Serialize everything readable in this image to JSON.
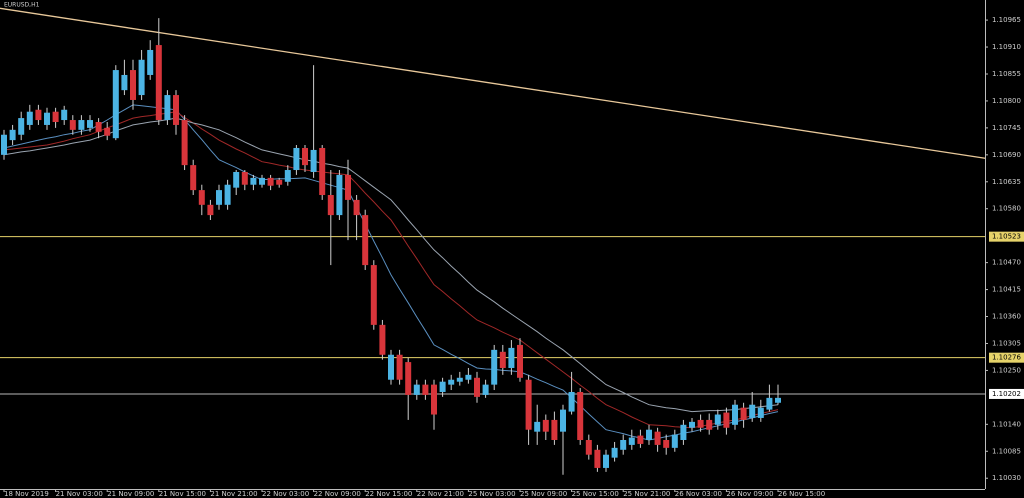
{
  "chart_data": {
    "type": "candlestick",
    "title": "EURUSD,H1",
    "categories": [
      "18 Nov 2019",
      null,
      null,
      null,
      null,
      null,
      "21 Nov 03:00",
      null,
      null,
      null,
      null,
      null,
      "21 Nov 09:00",
      null,
      null,
      null,
      null,
      null,
      "21 Nov 15:00",
      null,
      null,
      null,
      null,
      null,
      "21 Nov 21:00",
      null,
      null,
      null,
      null,
      null,
      "22 Nov 03:00",
      null,
      null,
      null,
      null,
      null,
      "22 Nov 09:00",
      null,
      null,
      null,
      null,
      null,
      "22 Nov 15:00",
      null,
      null,
      null,
      null,
      null,
      "22 Nov 21:00",
      null,
      null,
      null,
      null,
      null,
      "25 Nov 03:00",
      null,
      null,
      null,
      null,
      null,
      "25 Nov 09:00",
      null,
      null,
      null,
      null,
      null,
      "25 Nov 15:00",
      null,
      null,
      null,
      null,
      null,
      "25 Nov 21:00",
      null,
      null,
      null,
      null,
      null,
      "26 Nov 03:00",
      null,
      null,
      null,
      null,
      null,
      "26 Nov 09:00",
      null,
      null,
      null,
      null,
      null,
      "26 Nov 15:00"
    ],
    "open": [
      1.1069,
      1.1072,
      1.10731,
      1.10751,
      1.10782,
      1.10751,
      1.10778,
      1.10761,
      1.10761,
      1.10741,
      1.10745,
      1.10757,
      1.10745,
      1.10724,
      1.10822,
      1.10863,
      1.10812,
      1.10853,
      1.10914,
      1.10761,
      1.10812,
      1.10761,
      1.10669,
      1.10618,
      1.10588,
      1.10588,
      1.10588,
      1.10623,
      1.10655,
      1.10629,
      1.10629,
      1.10643,
      1.10639,
      1.10635,
      1.10659,
      1.10704,
      1.10655,
      1.10704,
      1.10608,
      1.10567,
      1.10649,
      1.10598,
      1.10567,
      1.10465,
      1.10343,
      1.10231,
      1.10282,
      1.10267,
      1.102,
      1.10221,
      1.10221,
      1.10206,
      1.10221,
      1.10227,
      1.10231,
      1.10235,
      1.102,
      1.10221,
      1.10288,
      1.10255,
      1.10302,
      1.10231,
      1.10125,
      1.10149,
      1.10149,
      1.10125,
      1.10166,
      1.10206,
      1.10108,
      1.10088,
      1.10051,
      1.10072,
      1.10088,
      1.10098,
      1.10117,
      1.10108,
      1.10125,
      1.10108,
      1.10092,
      1.10108,
      1.10133,
      1.10149,
      1.10149,
      1.10139,
      1.10164,
      1.10139,
      1.10174,
      1.10153,
      1.10153,
      1.1017,
      1.10184
    ],
    "high": [
      1.10741,
      1.10751,
      1.10778,
      1.10792,
      1.10792,
      1.10786,
      1.10786,
      1.1079,
      1.10771,
      1.10771,
      1.10771,
      1.10765,
      1.10757,
      1.10873,
      1.10884,
      1.10884,
      1.10904,
      1.10924,
      1.10969,
      1.10822,
      1.10822,
      1.10771,
      1.1068,
      1.10629,
      1.10598,
      1.10629,
      1.10639,
      1.10659,
      1.10659,
      1.10649,
      1.10649,
      1.10649,
      1.10643,
      1.10669,
      1.1071,
      1.1071,
      1.10873,
      1.1071,
      1.10659,
      1.10659,
      1.1068,
      1.10608,
      1.10578,
      1.10475,
      1.10353,
      1.10292,
      1.10292,
      1.10276,
      1.10231,
      1.10231,
      1.10231,
      1.10235,
      1.10241,
      1.10247,
      1.10255,
      1.10247,
      1.10231,
      1.10302,
      1.10302,
      1.10312,
      1.10316,
      1.10241,
      1.1018,
      1.1016,
      1.10166,
      1.1018,
      1.10247,
      1.10214,
      1.10119,
      1.10098,
      1.10088,
      1.10104,
      1.10119,
      1.10129,
      1.10129,
      1.10139,
      1.10133,
      1.10119,
      1.10129,
      1.10149,
      1.10153,
      1.1016,
      1.10162,
      1.1017,
      1.10174,
      1.1019,
      1.10184,
      1.10206,
      1.1019,
      1.10221,
      1.10221
    ],
    "low": [
      1.1068,
      1.1071,
      1.1072,
      1.10741,
      1.10751,
      1.10741,
      1.10745,
      1.10751,
      1.10731,
      1.10731,
      1.10737,
      1.10724,
      1.1072,
      1.1072,
      1.10812,
      1.10782,
      1.10802,
      1.10843,
      1.10751,
      1.10751,
      1.10731,
      1.10659,
      1.10608,
      1.10567,
      1.10557,
      1.10578,
      1.10578,
      1.10608,
      1.10618,
      1.10618,
      1.10623,
      1.10618,
      1.10623,
      1.10627,
      1.10649,
      1.10655,
      1.10643,
      1.10598,
      1.10465,
      1.10557,
      1.10516,
      1.10516,
      1.10455,
      1.10333,
      1.10272,
      1.10221,
      1.10221,
      1.10149,
      1.1019,
      1.1019,
      1.10129,
      1.10196,
      1.1021,
      1.10219,
      1.10223,
      1.10184,
      1.10194,
      1.1021,
      1.10241,
      1.10241,
      1.10227,
      1.10098,
      1.10098,
      1.10108,
      1.10098,
      1.10037,
      1.1016,
      1.10098,
      1.10068,
      1.10043,
      1.10043,
      1.10064,
      1.10078,
      1.10088,
      1.10092,
      1.10098,
      1.10084,
      1.10078,
      1.10084,
      1.10098,
      1.10125,
      1.10125,
      1.10119,
      1.10129,
      1.10119,
      1.10129,
      1.10133,
      1.10145,
      1.10145,
      1.10166,
      1.1018
    ],
    "close": [
      1.10731,
      1.10741,
      1.10765,
      1.10778,
      1.10761,
      1.10776,
      1.10757,
      1.10782,
      1.10741,
      1.10761,
      1.10761,
      1.10737,
      1.10729,
      1.10863,
      1.10853,
      1.10802,
      1.10884,
      1.10904,
      1.10761,
      1.10812,
      1.10751,
      1.10669,
      1.10618,
      1.10588,
      1.10567,
      1.10618,
      1.10629,
      1.10655,
      1.10629,
      1.10643,
      1.10643,
      1.10627,
      1.10629,
      1.10659,
      1.10704,
      1.10669,
      1.107,
      1.10608,
      1.10567,
      1.10649,
      1.10598,
      1.10567,
      1.10465,
      1.10343,
      1.10282,
      1.10282,
      1.10231,
      1.102,
      1.10221,
      1.102,
      1.1016,
      1.10227,
      1.10231,
      1.10235,
      1.10241,
      1.10196,
      1.10221,
      1.10292,
      1.10255,
      1.10296,
      1.10235,
      1.10129,
      1.10145,
      1.10125,
      1.10108,
      1.1017,
      1.10206,
      1.10108,
      1.10078,
      1.10051,
      1.10078,
      1.10092,
      1.10108,
      1.10113,
      1.101,
      1.10129,
      1.10098,
      1.10092,
      1.10119,
      1.10139,
      1.10145,
      1.10133,
      1.10129,
      1.1016,
      1.10133,
      1.1018,
      1.10149,
      1.1018,
      1.10174,
      1.10194,
      1.10194
    ],
    "up_color": "#4cb4e4",
    "down_color": "#d8353b",
    "wick_color": "#d0d0d0",
    "lines": [
      {
        "color": "#5a8fc0",
        "values": [
          1.10704,
          1.10708,
          1.10712,
          1.10716,
          1.1072,
          1.10724,
          1.10727,
          1.10731,
          1.10734,
          1.10738,
          1.10741,
          1.10751,
          1.10761,
          1.10772,
          1.10782,
          1.10792,
          1.1079,
          1.10788,
          1.10786,
          1.10784,
          1.10782,
          1.10762,
          1.10741,
          1.10721,
          1.107,
          1.1068,
          1.10672,
          1.10664,
          1.10655,
          1.10647,
          1.10639,
          1.1064,
          1.10641,
          1.10641,
          1.10642,
          1.10643,
          1.10638,
          1.10633,
          1.10628,
          1.10623,
          1.10618,
          1.10583,
          1.10549,
          1.10514,
          1.1048,
          1.10445,
          1.10416,
          1.10388,
          1.10359,
          1.10331,
          1.10302,
          1.10293,
          1.10283,
          1.10274,
          1.10264,
          1.10255,
          1.10253,
          1.10252,
          1.1025,
          1.10249,
          1.10247,
          1.1024,
          1.10232,
          1.10225,
          1.10217,
          1.1021,
          1.10194,
          1.10178,
          1.10161,
          1.10145,
          1.10129,
          1.10125,
          1.10121,
          1.10116,
          1.10112,
          1.10108,
          1.10111,
          1.10115,
          1.10118,
          1.10122,
          1.10125,
          1.10129,
          1.10133,
          1.10137,
          1.10141,
          1.10145,
          1.10149,
          1.10153,
          1.10158,
          1.10162,
          1.10166
        ]
      },
      {
        "color": "#a02828",
        "values": [
          1.107,
          1.10702,
          1.10704,
          1.10706,
          1.10708,
          1.1071,
          1.10714,
          1.10718,
          1.10723,
          1.10727,
          1.10731,
          1.10738,
          1.10745,
          1.10751,
          1.10758,
          1.10765,
          1.10768,
          1.1077,
          1.10773,
          1.10775,
          1.10778,
          1.10766,
          1.10755,
          1.10743,
          1.10732,
          1.1072,
          1.10711,
          1.10702,
          1.10694,
          1.10685,
          1.10676,
          1.10673,
          1.10669,
          1.10666,
          1.10662,
          1.10659,
          1.10657,
          1.10655,
          1.10653,
          1.10651,
          1.10649,
          1.10631,
          1.10612,
          1.10594,
          1.10575,
          1.10557,
          1.10531,
          1.10504,
          1.10478,
          1.10451,
          1.10425,
          1.10411,
          1.10396,
          1.10382,
          1.10367,
          1.10353,
          1.10345,
          1.10337,
          1.10328,
          1.1032,
          1.10312,
          1.10299,
          1.10286,
          1.10273,
          1.1026,
          1.10247,
          1.10234,
          1.1022,
          1.10207,
          1.10193,
          1.1018,
          1.10172,
          1.10164,
          1.10155,
          1.10147,
          1.10139,
          1.10138,
          1.10137,
          1.10135,
          1.10134,
          1.10133,
          1.10136,
          1.10139,
          1.10143,
          1.10146,
          1.10149,
          1.10153,
          1.10158,
          1.10162,
          1.10166,
          1.1017
        ]
      },
      {
        "color": "#9aa4b0",
        "values": [
          1.1069,
          1.10693,
          1.10696,
          1.10698,
          1.10701,
          1.10704,
          1.10707,
          1.1071,
          1.10714,
          1.10717,
          1.1072,
          1.10726,
          1.10732,
          1.10739,
          1.10745,
          1.10751,
          1.10754,
          1.10757,
          1.10759,
          1.10762,
          1.10765,
          1.1076,
          1.10755,
          1.10751,
          1.10746,
          1.10741,
          1.10733,
          1.10725,
          1.10716,
          1.10708,
          1.107,
          1.10696,
          1.10692,
          1.10688,
          1.10684,
          1.1068,
          1.10677,
          1.10673,
          1.1067,
          1.10666,
          1.10663,
          1.1065,
          1.10637,
          1.10624,
          1.10611,
          1.10598,
          1.10578,
          1.10557,
          1.10537,
          1.10516,
          1.10496,
          1.1048,
          1.10463,
          1.10447,
          1.1043,
          1.10414,
          1.10402,
          1.1039,
          1.10377,
          1.10365,
          1.10353,
          1.10341,
          1.10329,
          1.10316,
          1.10304,
          1.10292,
          1.10278,
          1.10264,
          1.10249,
          1.10235,
          1.10221,
          1.10213,
          1.10205,
          1.10196,
          1.10188,
          1.1018,
          1.10177,
          1.10174,
          1.10172,
          1.10169,
          1.10166,
          1.10167,
          1.10168,
          1.10168,
          1.10169,
          1.1017,
          1.10172,
          1.10174,
          1.10176,
          1.10178,
          1.1018
        ]
      }
    ],
    "trendline": {
      "color": "#e8c89a",
      "values": [
        1.10989,
        1.10683
      ]
    },
    "levels": [
      {
        "value": 1.10523,
        "color": "#e6d36a",
        "label_color": "#e6d36a"
      },
      {
        "value": 1.10276,
        "color": "#e6d36a",
        "label_color": "#e6d36a"
      },
      {
        "value": 1.10202,
        "color": "#b8b8b8",
        "label_color": "#ffffff"
      }
    ],
    "ylim": [
      1.10008,
      1.11006
    ],
    "yticks": [
      1.10965,
      {
        "value": 1.1091,
        "label": "1.10910"
      },
      1.10855,
      {
        "value": 1.108,
        "label": "1.10800"
      },
      1.10745,
      {
        "value": 1.1069,
        "label": "1.10690"
      },
      1.10635,
      {
        "value": 1.1058,
        "label": "1.10580"
      },
      {
        "value": 1.1047,
        "label": "1.10470"
      },
      1.10415,
      {
        "value": 1.1036,
        "label": "1.10360"
      },
      1.10305,
      {
        "value": 1.1025,
        "label": "1.10250"
      },
      {
        "value": 1.1014,
        "label": "1.10140"
      },
      1.10085,
      {
        "value": 1.1003,
        "label": "1.10030"
      }
    ],
    "grid": false
  }
}
